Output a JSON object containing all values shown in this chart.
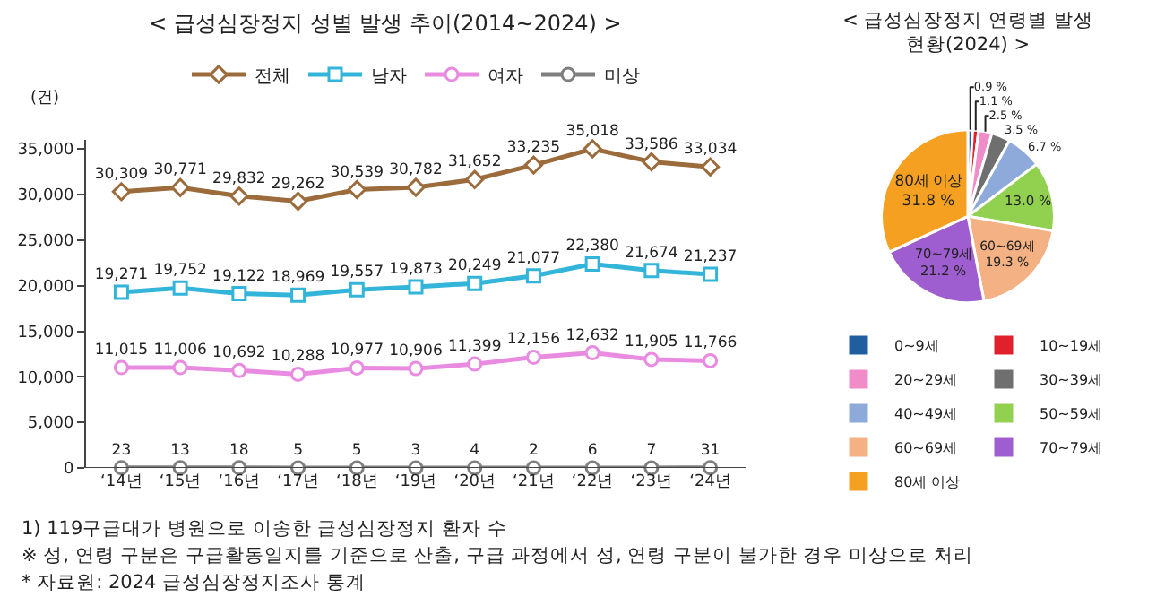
{
  "chart_data": [
    {
      "type": "line",
      "title": "< 급성심장정지 성별 발생 추이(2014~2024) >",
      "ylabel": "(건)",
      "categories": [
        "‘14년",
        "‘15년",
        "‘16년",
        "‘17년",
        "‘18년",
        "‘19년",
        "‘20년",
        "‘21년",
        "‘22년",
        "‘23년",
        "‘24년"
      ],
      "series": [
        {
          "name": "전체",
          "color": "#9c6b3c",
          "marker": "diamond",
          "values": [
            30309,
            30771,
            29832,
            29262,
            30539,
            30782,
            31652,
            33235,
            35018,
            33586,
            33034
          ],
          "value_labels": [
            "30,309",
            "30,771",
            "29,832",
            "29,262",
            "30,539",
            "30,782",
            "31,652",
            "33,235",
            "35,018",
            "33,586",
            "33,034"
          ]
        },
        {
          "name": "남자",
          "color": "#33b5d9",
          "marker": "square",
          "values": [
            19271,
            19752,
            19122,
            18969,
            19557,
            19873,
            20249,
            21077,
            22380,
            21674,
            21237
          ],
          "value_labels": [
            "19,271",
            "19,752",
            "19,122",
            "18,969",
            "19,557",
            "19,873",
            "20,249",
            "21,077",
            "22,380",
            "21,674",
            "21,237"
          ]
        },
        {
          "name": "여자",
          "color": "#e98be0",
          "marker": "circle",
          "values": [
            11015,
            11006,
            10692,
            10288,
            10977,
            10906,
            11399,
            12156,
            12632,
            11905,
            11766
          ],
          "value_labels": [
            "11,015",
            "11,006",
            "10,692",
            "10,288",
            "10,977",
            "10,906",
            "11,399",
            "12,156",
            "12,632",
            "11,905",
            "11,766"
          ]
        },
        {
          "name": "미상",
          "color": "#7f7f7f",
          "marker": "circle",
          "values": [
            23,
            13,
            18,
            5,
            5,
            3,
            4,
            2,
            6,
            7,
            31
          ],
          "value_labels": [
            "23",
            "13",
            "18",
            "5",
            "5",
            "3",
            "4",
            "2",
            "6",
            "7",
            "31"
          ]
        }
      ],
      "ylim": [
        0,
        36000
      ],
      "yticks": [
        {
          "value": 0,
          "label": "0"
        },
        {
          "value": 5000,
          "label": "5,000"
        },
        {
          "value": 10000,
          "label": "10,000"
        },
        {
          "value": 15000,
          "label": "15,000"
        },
        {
          "value": 20000,
          "label": "20,000"
        },
        {
          "value": 25000,
          "label": "25,000"
        },
        {
          "value": 30000,
          "label": "30,000"
        },
        {
          "value": 35000,
          "label": "35,000"
        }
      ],
      "grid": false,
      "legend": "top",
      "annotations": [
        "1) 119구급대가 병원으로 이송한 급성심장정지 환자 수",
        "※ 성, 연령 구분은 구급활동일지를 기준으로 산출, 구급 과정에서 성, 연령 구분이 불가한 경우 미상으로 처리",
        "* 자료원: 2024 급성심장정지조사 통계"
      ]
    },
    {
      "type": "pie",
      "title": "< 급성심장정지 연령별 발생\n현황(2024) >",
      "categories": [
        "0~9세",
        "10~19세",
        "20~29세",
        "30~39세",
        "40~49세",
        "50~59세",
        "60~69세",
        "70~79세",
        "80세 이상"
      ],
      "values": [
        0.9,
        1.1,
        2.5,
        3.5,
        6.7,
        13.0,
        19.3,
        21.2,
        31.8
      ],
      "colors": [
        "#1f5fa0",
        "#e0202a",
        "#f08cc8",
        "#6f6f6f",
        "#8eaadb",
        "#92d050",
        "#f4b183",
        "#9e5ecf",
        "#f5a020"
      ],
      "value_labels": [
        "0.9 %",
        "1.1 %",
        "2.5 %",
        "3.5 %",
        "6.7 %",
        "13.0 %",
        "60~69세\n19.3 %",
        "70~79세\n21.2 %",
        "80세 이상\n31.8 %"
      ],
      "legend": "bottom"
    }
  ]
}
